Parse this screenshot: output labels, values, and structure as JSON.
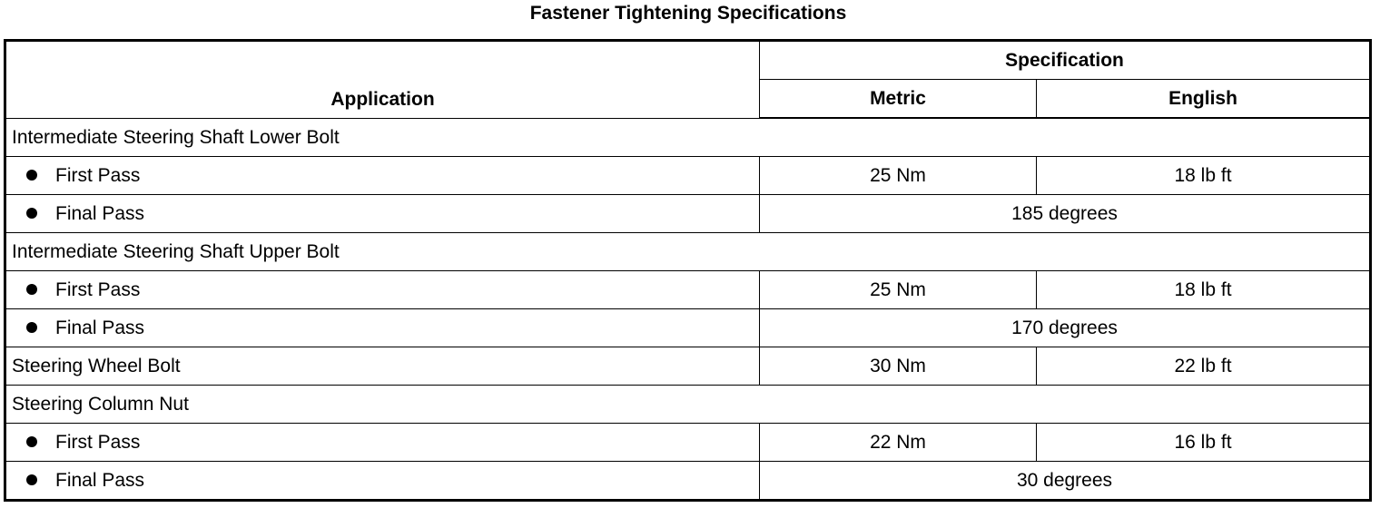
{
  "title": "Fastener Tightening Specifications",
  "headers": {
    "application": "Application",
    "specification": "Specification",
    "metric": "Metric",
    "english": "English"
  },
  "rows": [
    {
      "label": "Intermediate Steering Shaft Lower Bolt",
      "group": true
    },
    {
      "label": "First Pass",
      "metric": "25 Nm",
      "english": "18 lb ft"
    },
    {
      "label": "Final Pass",
      "combined": "185 degrees"
    },
    {
      "label": "Intermediate Steering Shaft Upper Bolt",
      "group": true
    },
    {
      "label": "First Pass",
      "metric": "25 Nm",
      "english": "18 lb ft"
    },
    {
      "label": "Final Pass",
      "combined": "170 degrees"
    },
    {
      "label": "Steering Wheel Bolt",
      "metric": "30 Nm",
      "english": "22 lb ft"
    },
    {
      "label": "Steering Column Nut",
      "group": true
    },
    {
      "label": "First Pass",
      "metric": "22 Nm",
      "english": "16 lb ft"
    },
    {
      "label": "Final Pass",
      "combined": "30 degrees"
    }
  ]
}
